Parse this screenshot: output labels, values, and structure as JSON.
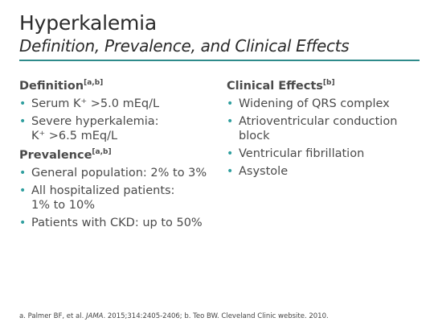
{
  "title": "Hyperkalemia",
  "subtitle": "Definition, Prevalence, and Clinical Effects",
  "sections": {
    "definition": {
      "heading": "Definition",
      "ref": "[a,b]",
      "items": [
        "Serum K⁺ >5.0 mEq/L",
        "Severe hyperkalemia:\nK⁺ >6.5 mEq/L"
      ]
    },
    "prevalence": {
      "heading": "Prevalence",
      "ref": "[a,b]",
      "items": [
        "General population: 2% to 3%",
        "All hospitalized patients:\n1% to 10%",
        "Patients with CKD: up to 50%"
      ]
    },
    "clinical_effects": {
      "heading": "Clinical Effects",
      "ref": "[b]",
      "items": [
        "Widening of QRS complex",
        "Atrioventricular conduction\nblock",
        "Ventricular fibrillation",
        "Asystole"
      ]
    }
  },
  "bullet_char": "•",
  "footnote": {
    "part1": "a. Palmer BF, et al. ",
    "journal": "JAMA",
    "part2": ". 2015;314:2405-2406; b. Teo BW. Cleveland Clinic website. 2010."
  },
  "colors": {
    "accent": "#2e8b8b",
    "bullet": "#2e9e9e",
    "text": "#4a4a4a"
  }
}
